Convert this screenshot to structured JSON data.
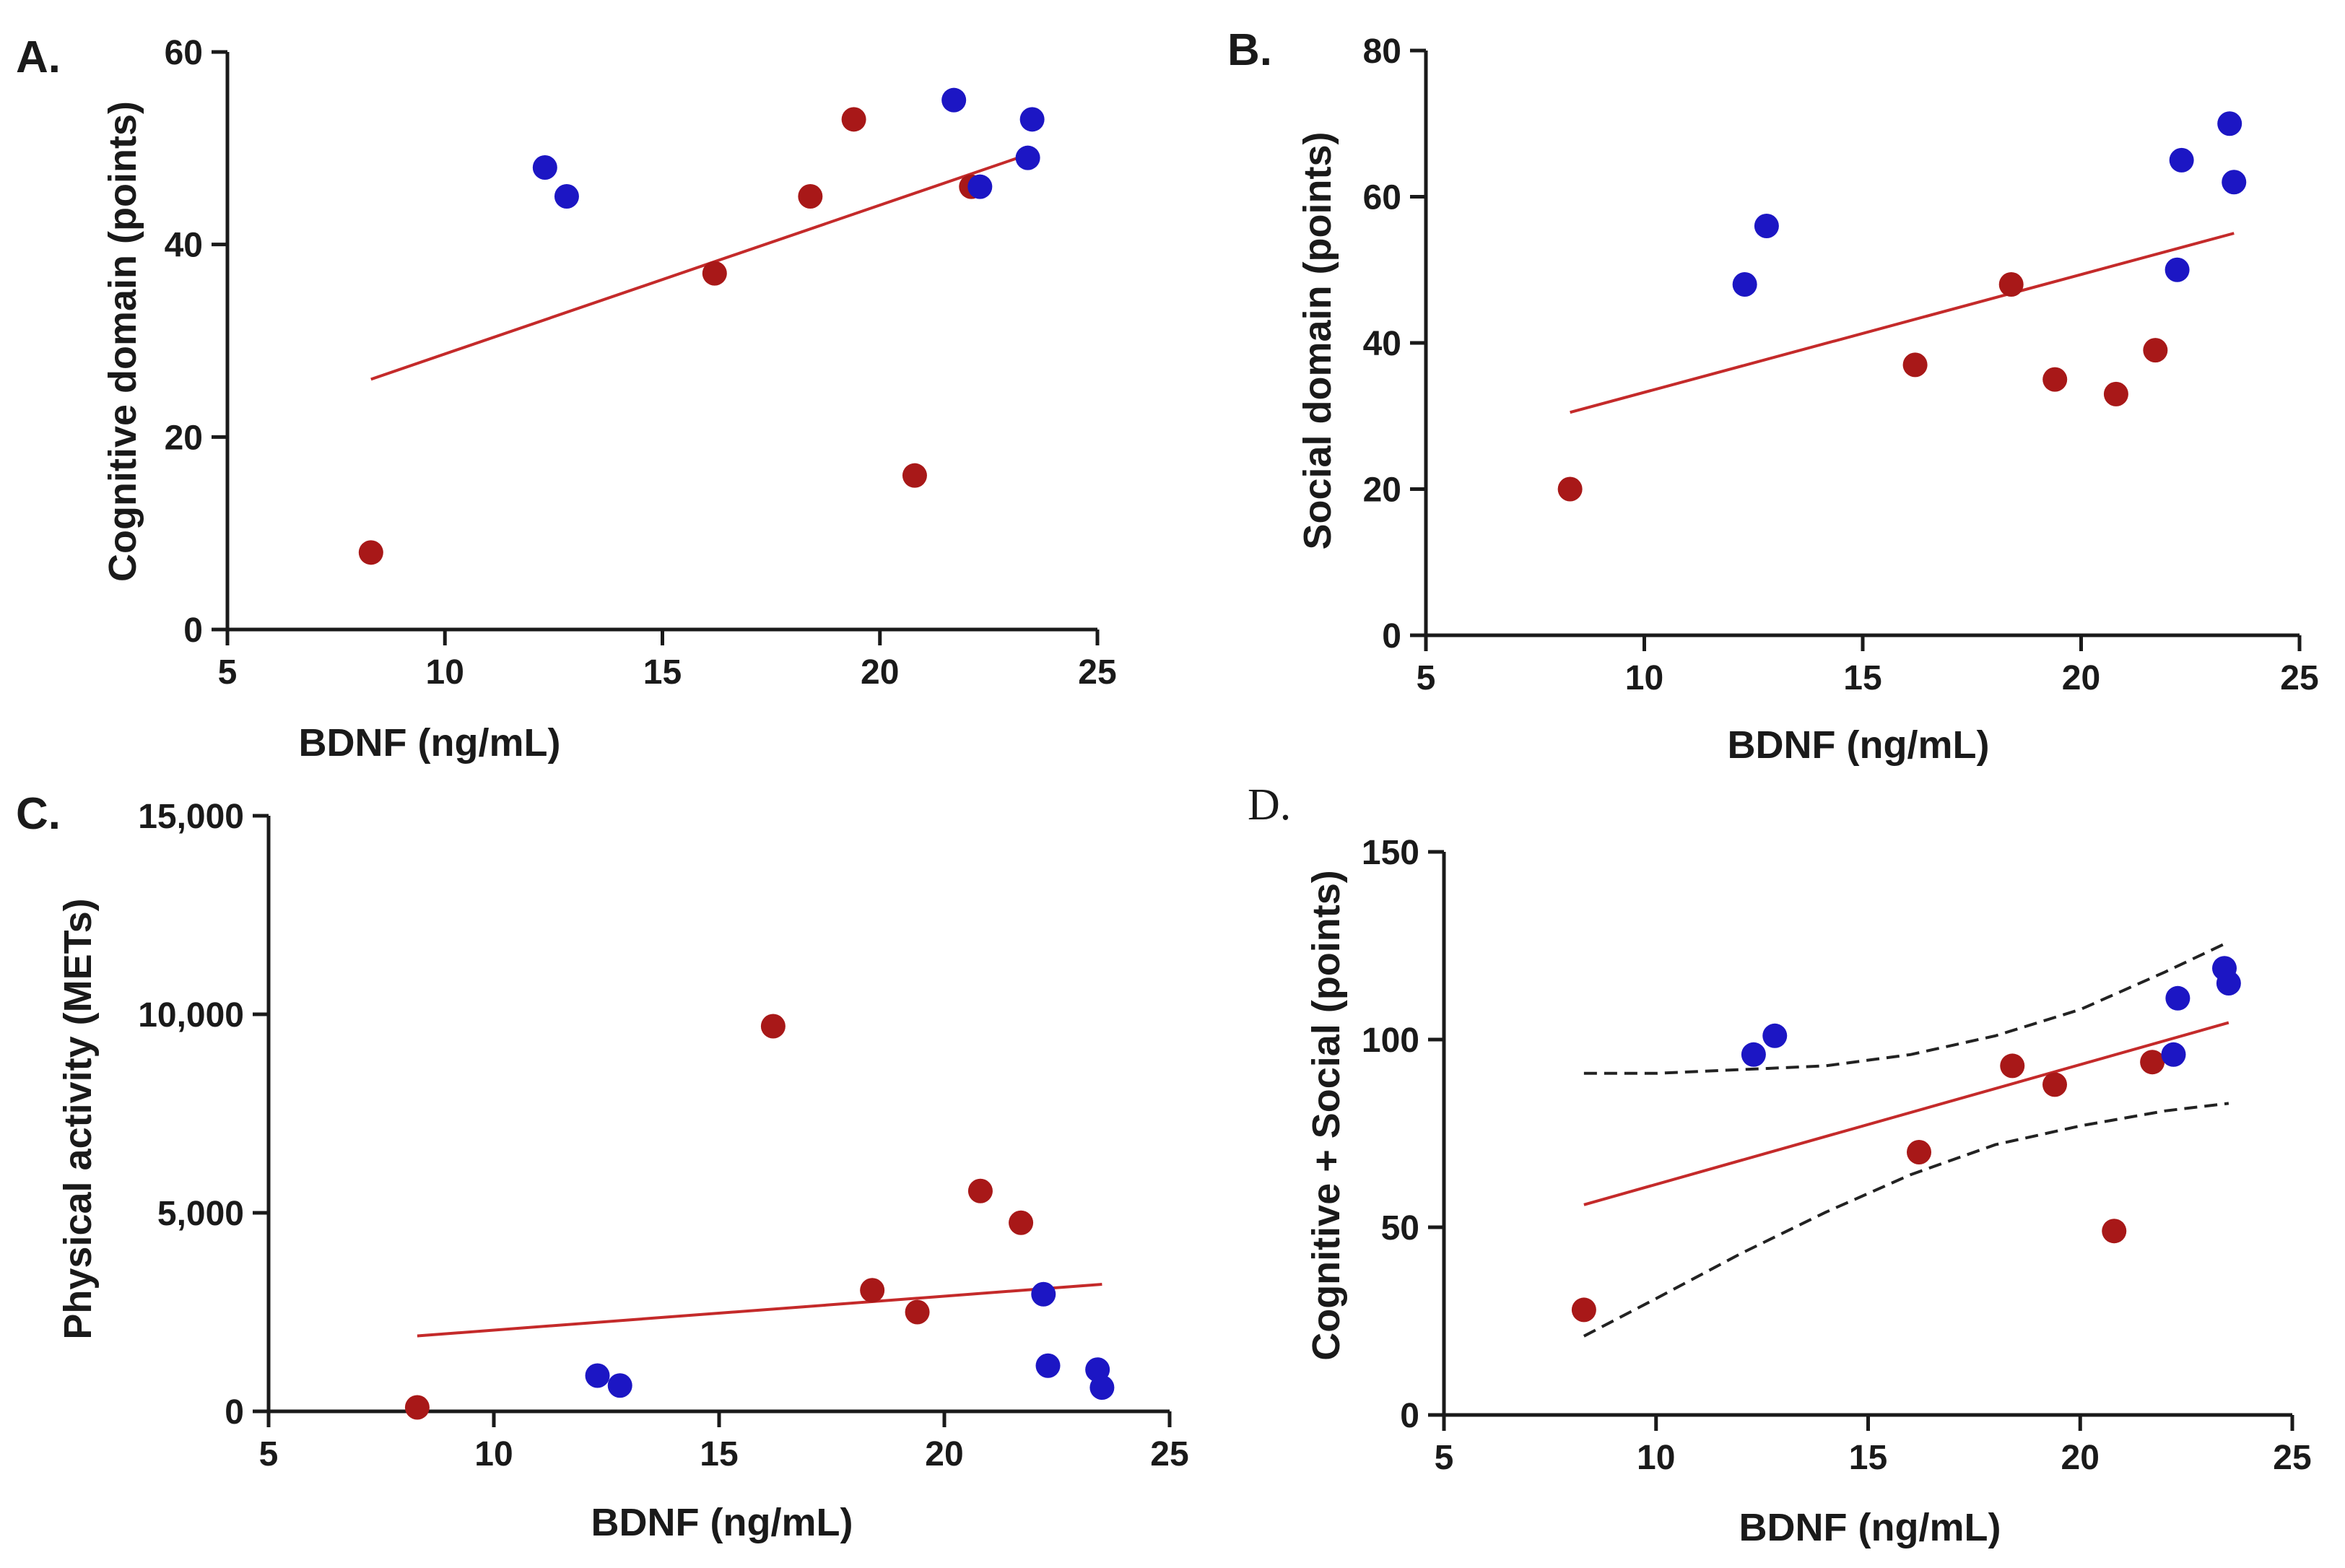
{
  "colors": {
    "group_red": "#a81818",
    "group_blue": "#1c16c4",
    "fit_line": "#c42a2a",
    "axis": "#1a1a1a"
  },
  "chart_data": [
    {
      "panel": "A.",
      "type": "scatter",
      "xlabel": "BDNF (ng/mL)",
      "ylabel": "Cognitive domain (points)",
      "xlim": [
        5,
        25
      ],
      "ylim": [
        0,
        60
      ],
      "xticks": [
        5,
        10,
        15,
        20,
        25
      ],
      "yticks": [
        0,
        20,
        40,
        60
      ],
      "ytick_labels": [
        "0",
        "20",
        "40",
        "60"
      ],
      "series": [
        {
          "name": "red",
          "color": "#a81818",
          "points": [
            [
              8.3,
              8
            ],
            [
              16.2,
              37
            ],
            [
              18.4,
              45
            ],
            [
              19.4,
              53
            ],
            [
              20.8,
              16
            ],
            [
              22.1,
              46
            ]
          ]
        },
        {
          "name": "blue",
          "color": "#1c16c4",
          "points": [
            [
              12.3,
              48
            ],
            [
              12.8,
              45
            ],
            [
              21.7,
              55
            ],
            [
              22.3,
              46
            ],
            [
              23.4,
              49
            ],
            [
              23.5,
              53
            ]
          ]
        }
      ],
      "fit": {
        "x": [
          8.3,
          23.5
        ],
        "y": [
          26,
          49.5
        ]
      }
    },
    {
      "panel": "B.",
      "type": "scatter",
      "xlabel": "BDNF (ng/mL)",
      "ylabel": "Social domain (points)",
      "xlim": [
        5,
        25
      ],
      "ylim": [
        0,
        80
      ],
      "xticks": [
        5,
        10,
        15,
        20,
        25
      ],
      "yticks": [
        0,
        20,
        40,
        60,
        80
      ],
      "ytick_labels": [
        "0",
        "20",
        "40",
        "60",
        "80"
      ],
      "series": [
        {
          "name": "red",
          "color": "#a81818",
          "points": [
            [
              8.3,
              20
            ],
            [
              16.2,
              37
            ],
            [
              18.4,
              48
            ],
            [
              19.4,
              35
            ],
            [
              20.8,
              33
            ],
            [
              21.7,
              39
            ]
          ]
        },
        {
          "name": "blue",
          "color": "#1c16c4",
          "points": [
            [
              12.3,
              48
            ],
            [
              12.8,
              56
            ],
            [
              22.2,
              50
            ],
            [
              22.3,
              65
            ],
            [
              23.4,
              70
            ],
            [
              23.5,
              62
            ]
          ]
        }
      ],
      "fit": {
        "x": [
          8.3,
          23.5
        ],
        "y": [
          30.5,
          55
        ]
      }
    },
    {
      "panel": "C.",
      "type": "scatter",
      "xlabel": "BDNF (ng/mL)",
      "ylabel": "Physical activity (METs)",
      "xlim": [
        5,
        25
      ],
      "ylim": [
        0,
        15000
      ],
      "xticks": [
        5,
        10,
        15,
        20,
        25
      ],
      "yticks": [
        0,
        5000,
        10000,
        15000
      ],
      "ytick_labels": [
        "0",
        "5,000",
        "10,000",
        "15,000"
      ],
      "series": [
        {
          "name": "red",
          "color": "#a81818",
          "points": [
            [
              8.3,
              100
            ],
            [
              16.2,
              9700
            ],
            [
              18.4,
              3050
            ],
            [
              19.4,
              2500
            ],
            [
              20.8,
              5550
            ],
            [
              21.7,
              4750
            ]
          ]
        },
        {
          "name": "blue",
          "color": "#1c16c4",
          "points": [
            [
              12.3,
              900
            ],
            [
              12.8,
              650
            ],
            [
              22.2,
              2950
            ],
            [
              22.3,
              1150
            ],
            [
              23.4,
              1050
            ],
            [
              23.5,
              600
            ]
          ]
        }
      ],
      "fit": {
        "x": [
          8.3,
          23.5
        ],
        "y": [
          1900,
          3200
        ]
      }
    },
    {
      "panel": "D.",
      "type": "scatter",
      "xlabel": "BDNF (ng/mL)",
      "ylabel": "Cognitive + Social (points)",
      "xlim": [
        5,
        25
      ],
      "ylim": [
        0,
        150
      ],
      "xticks": [
        5,
        10,
        15,
        20,
        25
      ],
      "yticks": [
        0,
        50,
        100,
        150
      ],
      "ytick_labels": [
        "0",
        "50",
        "100",
        "150"
      ],
      "series": [
        {
          "name": "red",
          "color": "#a81818",
          "points": [
            [
              8.3,
              28
            ],
            [
              16.2,
              70
            ],
            [
              18.4,
              93
            ],
            [
              19.4,
              88
            ],
            [
              20.8,
              49
            ],
            [
              21.7,
              94
            ]
          ]
        },
        {
          "name": "blue",
          "color": "#1c16c4",
          "points": [
            [
              12.3,
              96
            ],
            [
              12.8,
              101
            ],
            [
              22.2,
              96
            ],
            [
              22.3,
              111
            ],
            [
              23.4,
              119
            ],
            [
              23.5,
              115
            ]
          ]
        }
      ],
      "fit": {
        "x": [
          8.3,
          23.5
        ],
        "y": [
          56,
          104.5
        ]
      },
      "confidence_band": {
        "x": [
          8.3,
          10,
          12,
          14,
          16,
          18,
          20,
          22,
          23.5
        ],
        "upper": [
          91,
          91,
          92,
          93,
          96,
          101,
          108,
          118,
          126
        ],
        "lower": [
          21,
          31,
          43,
          54,
          64,
          72,
          77,
          81,
          83
        ]
      }
    }
  ]
}
